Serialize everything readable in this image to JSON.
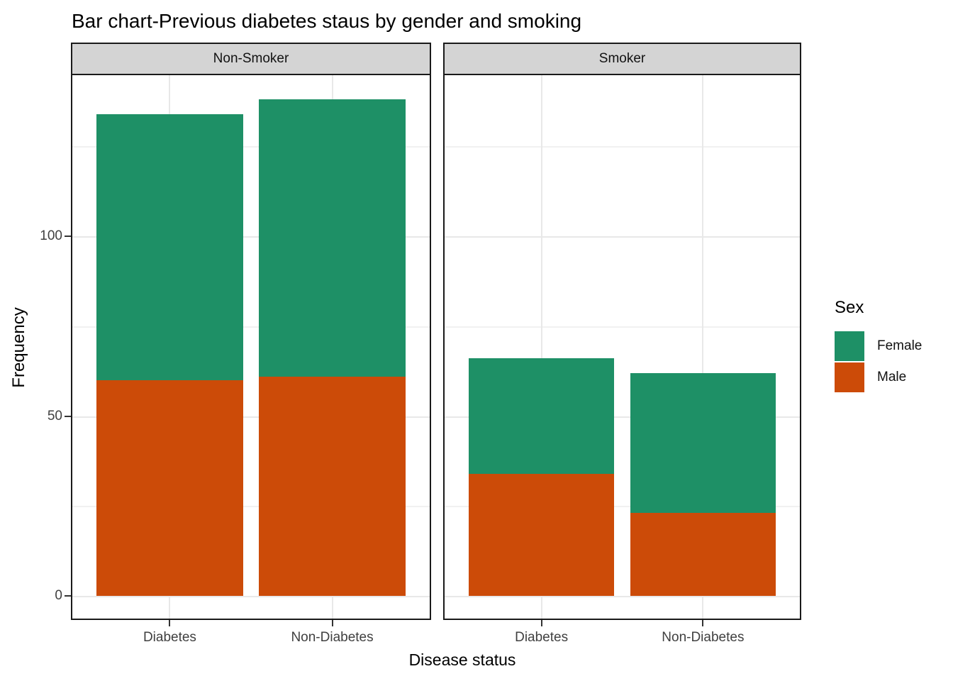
{
  "chart_data": {
    "type": "bar",
    "stacked": true,
    "title": "Bar chart-Previous diabetes staus by gender and smoking",
    "xlabel": "Disease status",
    "ylabel": "Frequency",
    "categories": [
      "Diabetes",
      "Non-Diabetes"
    ],
    "facets": [
      {
        "label": "Non-Smoker",
        "categories": [
          "Diabetes",
          "Non-Diabetes"
        ],
        "series": [
          {
            "name": "Male",
            "values": [
              60,
              61
            ]
          },
          {
            "name": "Female",
            "values": [
              74,
              77
            ]
          }
        ],
        "totals": [
          134,
          138
        ]
      },
      {
        "label": "Smoker",
        "categories": [
          "Diabetes",
          "Non-Diabetes"
        ],
        "series": [
          {
            "name": "Male",
            "values": [
              34,
              23
            ]
          },
          {
            "name": "Female",
            "values": [
              32,
              39
            ]
          }
        ],
        "totals": [
          66,
          62
        ]
      }
    ],
    "y_ticks": [
      0,
      50,
      100
    ],
    "y_minor_ticks": [
      25,
      75,
      125
    ],
    "ylim": [
      -7,
      145
    ],
    "grid": true,
    "stack_order_bottom_to_top": [
      "Male",
      "Female"
    ],
    "colors": {
      "Female": "#1E9066",
      "Male": "#CC4B08"
    },
    "legend": {
      "title": "Sex",
      "position": "right",
      "items": [
        {
          "label": "Female",
          "color": "#1E9066"
        },
        {
          "label": "Male",
          "color": "#CC4B08"
        }
      ]
    }
  }
}
